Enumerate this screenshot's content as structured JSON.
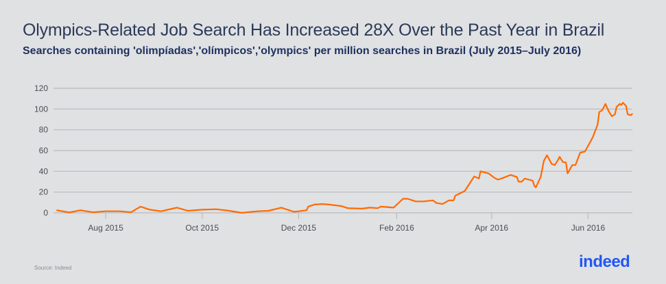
{
  "chart_data": {
    "type": "line",
    "title": "Olympics-Related Job Search Has Increased 28X Over the Past Year in Brazil",
    "subtitle": "Searches containing 'olimpíadas','olímpicos','olympics' per million searches in Brazil (July 2015–July 2016)",
    "xlabel": "",
    "ylabel": "",
    "xlim": [
      "2015-06-29",
      "2016-06-29"
    ],
    "ylim": [
      0,
      120
    ],
    "grid": true,
    "y_ticks": [
      0,
      20,
      40,
      60,
      80,
      100,
      120
    ],
    "x_ticks": [
      {
        "date": "2015-08-01",
        "label": "Aug 2015"
      },
      {
        "date": "2015-10-01",
        "label": "Oct 2015"
      },
      {
        "date": "2015-12-01",
        "label": "Dec 2015"
      },
      {
        "date": "2016-02-01",
        "label": "Feb 2016"
      },
      {
        "date": "2016-04-01",
        "label": "Apr 2016"
      },
      {
        "date": "2016-06-01",
        "label": "Jun 2016"
      }
    ],
    "line_color": "#ff6a00",
    "series": [
      {
        "x": [
          "2015-07-01",
          "2015-07-09",
          "2015-07-16",
          "2015-07-24",
          "2015-08-01",
          "2015-08-10",
          "2015-08-17",
          "2015-08-23",
          "2015-08-29",
          "2015-09-05",
          "2015-09-15",
          "2015-09-22",
          "2015-10-01",
          "2015-10-10",
          "2015-10-18",
          "2015-10-26",
          "2015-11-05",
          "2015-11-12",
          "2015-11-20",
          "2015-11-28",
          "2015-12-01",
          "2015-12-06",
          "2015-12-07",
          "2015-12-11",
          "2015-12-16",
          "2015-12-20",
          "2015-12-28",
          "2016-01-01",
          "2016-01-10",
          "2016-01-15",
          "2016-01-20",
          "2016-01-22",
          "2016-01-30",
          "2016-02-05",
          "2016-02-08",
          "2016-02-13",
          "2016-02-18",
          "2016-02-24",
          "2016-02-26",
          "2016-03-01",
          "2016-03-05",
          "2016-03-08",
          "2016-03-09",
          "2016-03-15",
          "2016-03-21",
          "2016-03-24",
          "2016-03-25",
          "2016-03-30",
          "2016-04-03",
          "2016-04-05",
          "2016-04-08",
          "2016-04-13",
          "2016-04-17",
          "2016-04-18",
          "2016-04-20",
          "2016-04-22",
          "2016-04-27",
          "2016-04-28",
          "2016-04-29",
          "2016-05-02",
          "2016-05-04",
          "2016-05-06",
          "2016-05-09",
          "2016-05-11",
          "2016-05-13",
          "2016-05-14",
          "2016-05-16",
          "2016-05-18",
          "2016-05-19",
          "2016-05-22",
          "2016-05-24",
          "2016-05-27",
          "2016-05-30",
          "2016-06-03",
          "2016-06-04",
          "2016-06-07",
          "2016-06-08",
          "2016-06-10",
          "2016-06-12",
          "2016-06-14",
          "2016-06-16",
          "2016-06-18",
          "2016-06-19",
          "2016-06-21",
          "2016-06-22",
          "2016-06-23",
          "2016-06-25",
          "2016-06-26",
          "2016-06-28",
          "2016-06-29"
        ],
        "y": [
          2.5,
          0.3,
          2.5,
          0.5,
          1.5,
          1.5,
          0.5,
          6,
          3,
          1.5,
          5,
          2,
          3,
          3.5,
          2,
          0,
          1.5,
          2,
          5,
          1,
          1.5,
          2.5,
          6,
          8,
          8.5,
          8,
          6.5,
          4.5,
          4,
          5,
          4.5,
          6,
          5,
          13.5,
          13.5,
          11,
          11,
          12,
          9.5,
          8.5,
          12,
          12,
          16.5,
          21,
          35,
          33,
          40,
          38,
          33.5,
          32,
          33.5,
          36.5,
          34.5,
          30,
          30,
          33,
          31,
          26,
          24.5,
          34.5,
          50,
          55.5,
          47,
          46,
          51,
          54,
          49,
          48.5,
          38,
          46,
          46,
          58,
          59,
          70,
          73,
          85,
          97,
          99,
          105,
          98,
          93,
          95,
          102,
          105,
          104,
          106,
          103,
          95,
          94,
          95.5
        ]
      }
    ]
  },
  "footer": {
    "source": "Source: Indeed",
    "logo_text": "indeed"
  }
}
